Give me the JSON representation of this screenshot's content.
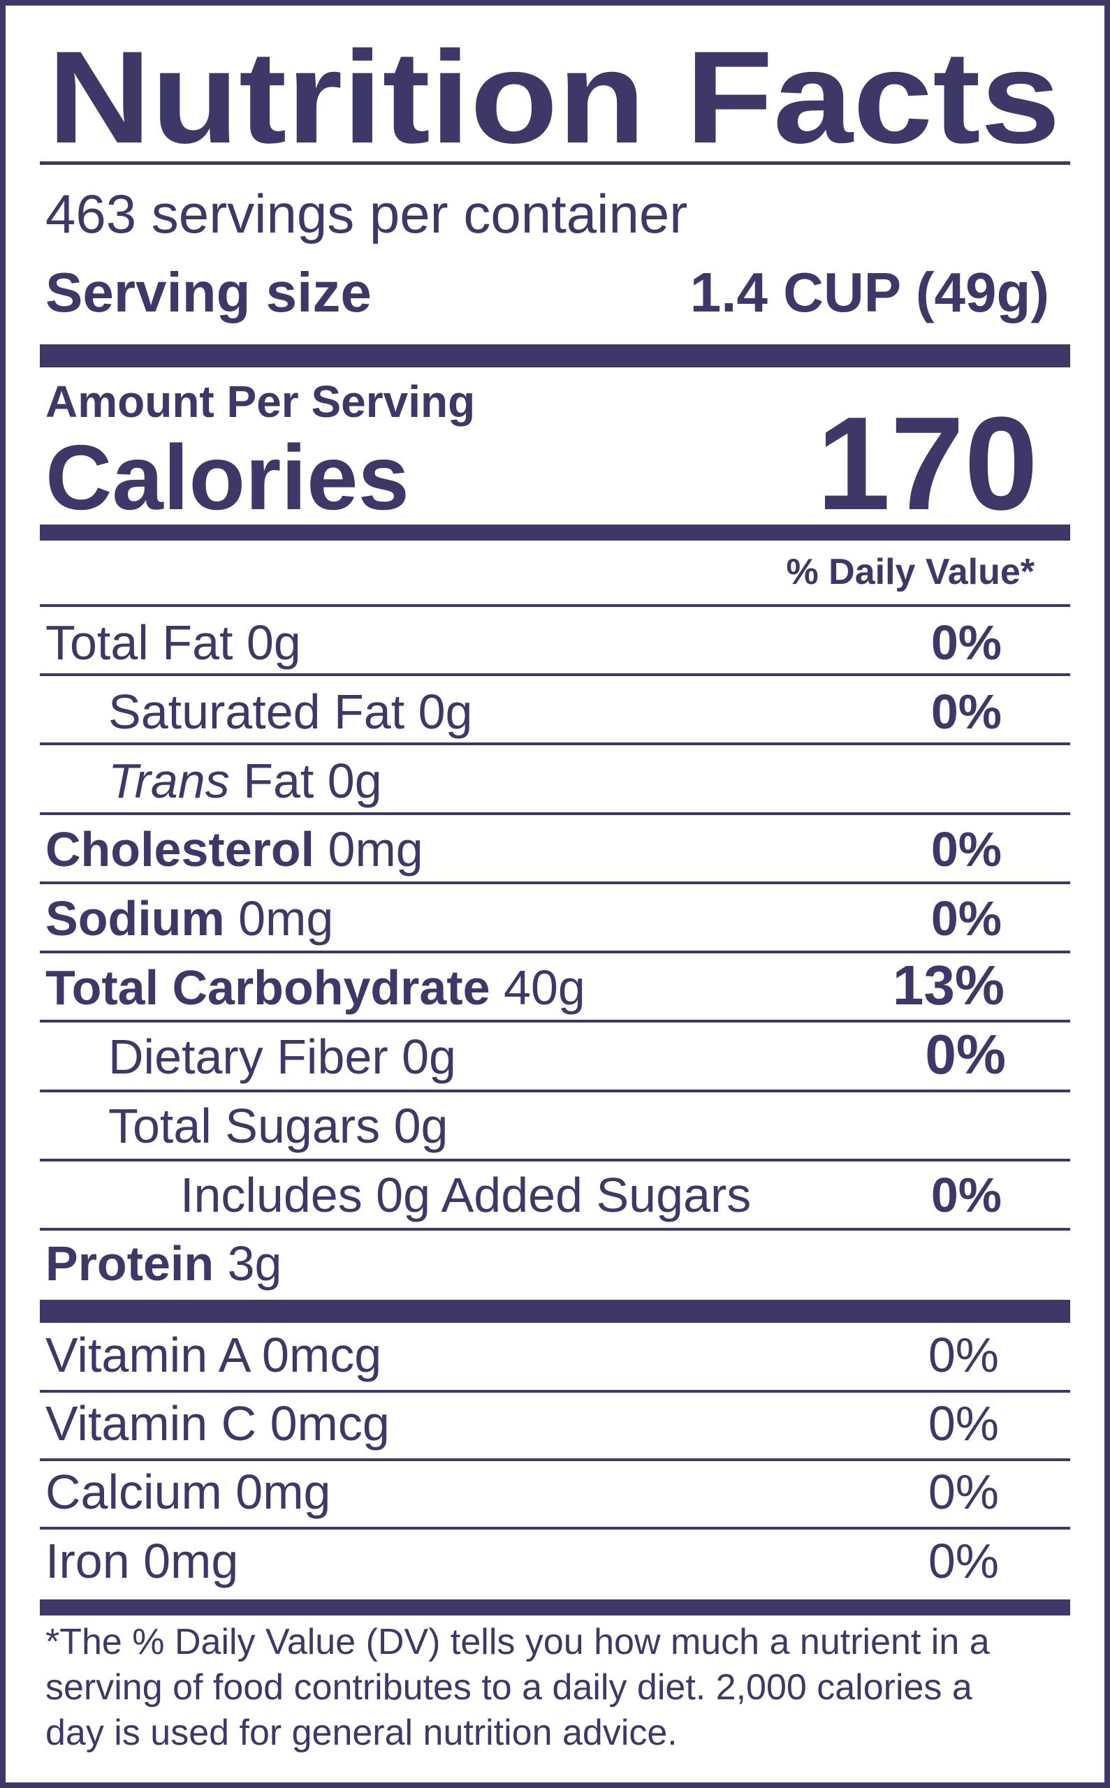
{
  "header": {
    "title": "Nutrition Facts",
    "servings": "463 servings per container",
    "serving_size_label": "Serving size",
    "serving_size_value": "1.4 CUP (49g)"
  },
  "calories": {
    "amount_label": "Amount Per Serving",
    "label": "Calories",
    "value": 170
  },
  "daily_value_header": "% Daily Value*",
  "nutrients": [
    {
      "name": "Total Fat",
      "amount": "0g",
      "dv": "0%"
    },
    {
      "name": "Saturated Fat",
      "amount": "0g",
      "dv": "0%"
    },
    {
      "prefix": "Trans",
      "name": "Fat",
      "amount": "0g"
    },
    {
      "name": "Cholesterol",
      "amount": "0mg",
      "dv": "0%"
    },
    {
      "name": "Sodium",
      "amount": "0mg",
      "dv": "0%"
    },
    {
      "name": "Total Carbohydrate",
      "amount": "40g",
      "dv": "13%"
    },
    {
      "name": "Dietary Fiber",
      "amount": "0g",
      "dv": "0%"
    },
    {
      "name": "Total Sugars",
      "amount": "0g"
    },
    {
      "label": "Includes 0g Added Sugars",
      "dv": "0%"
    },
    {
      "name": "Protein",
      "amount": "3g"
    }
  ],
  "vitamins": [
    {
      "name": "Vitamin A",
      "amount": "0mcg",
      "dv": "0%"
    },
    {
      "name": "Vitamin C",
      "amount": "0mcg",
      "dv": "0%"
    },
    {
      "name": "Calcium",
      "amount": "0mg",
      "dv": "0%"
    },
    {
      "name": "Iron",
      "amount": "0mg",
      "dv": "0%"
    }
  ],
  "footnote": [
    "*The % Daily Value (DV) tells you how much a nutrient in a",
    "serving of food contributes to a daily diet. 2,000 calories a",
    "day is used for general nutrition advice."
  ]
}
